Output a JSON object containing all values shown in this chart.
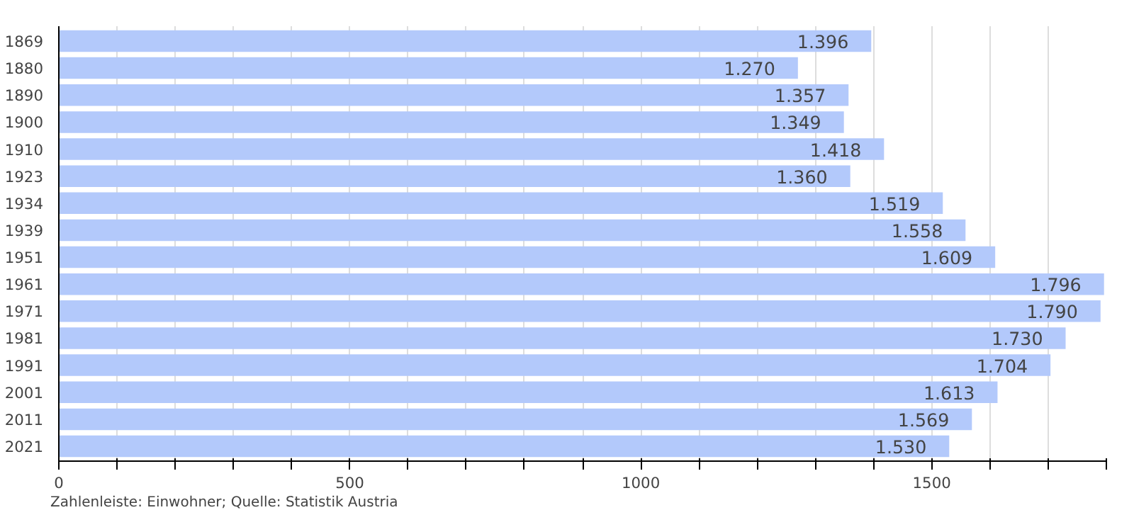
{
  "chart_data": {
    "type": "bar",
    "orientation": "horizontal",
    "categories": [
      "1869",
      "1880",
      "1890",
      "1900",
      "1910",
      "1923",
      "1934",
      "1939",
      "1951",
      "1961",
      "1971",
      "1981",
      "1991",
      "2001",
      "2011",
      "2021"
    ],
    "values": [
      1396,
      1270,
      1357,
      1349,
      1418,
      1360,
      1519,
      1558,
      1609,
      1796,
      1790,
      1730,
      1704,
      1613,
      1569,
      1530
    ],
    "value_labels": [
      "1.396",
      "1.270",
      "1.357",
      "1.349",
      "1.418",
      "1.360",
      "1.519",
      "1.558",
      "1.609",
      "1.796",
      "1.790",
      "1.730",
      "1.704",
      "1.613",
      "1.569",
      "1.530"
    ],
    "color": "#b3c9fb",
    "xlim": [
      0,
      1800
    ],
    "xticks": [
      0,
      {
        "value": 100,
        "label": null
      },
      {
        "value": 200,
        "label": null
      },
      {
        "value": 300,
        "label": null
      },
      {
        "value": 400,
        "label": null
      },
      500,
      {
        "value": 600,
        "label": null
      },
      {
        "value": 700,
        "label": null
      },
      {
        "value": 800,
        "label": null
      },
      {
        "value": 900,
        "label": null
      },
      1000,
      {
        "value": 1100,
        "label": null
      },
      {
        "value": 1200,
        "label": null
      },
      {
        "value": 1300,
        "label": null
      },
      {
        "value": 1400,
        "label": null
      },
      1500,
      {
        "value": 1600,
        "label": null
      },
      {
        "value": 1700,
        "label": null
      },
      {
        "value": 1800,
        "label": null
      }
    ],
    "grid": "x",
    "annotations": [
      "Zahlenleiste: Einwohner; Quelle: Statistik Austria"
    ]
  }
}
